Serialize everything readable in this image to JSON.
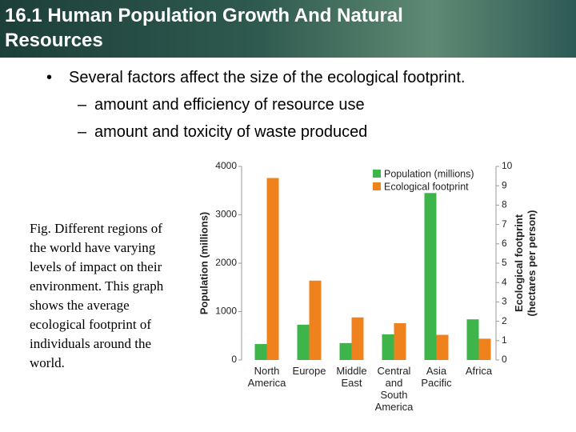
{
  "slide": {
    "title": "16.1 Human Population Growth And Natural Resources",
    "bullet": "Several factors affect the size of the ecological footprint.",
    "subbullets": [
      "amount and efficiency of resource use",
      "amount and toxicity of waste produced"
    ],
    "caption": "Fig. Different regions of the world have varying levels of impact on their environment. This graph shows the average ecological footprint of individuals around the world."
  },
  "chart_data": {
    "type": "bar",
    "categories": [
      "North America",
      "Europe",
      "Middle East",
      "Central and South America",
      "Asia Pacific",
      "Africa"
    ],
    "series": [
      {
        "name": "Population (millions)",
        "color": "#3db54a",
        "values": [
          330,
          730,
          350,
          530,
          3450,
          840
        ]
      },
      {
        "name": "Ecological footprint",
        "color": "#f0821e",
        "axis": "y2",
        "values": [
          9.4,
          4.1,
          2.2,
          1.9,
          1.3,
          1.1
        ]
      }
    ],
    "ylabel": "Population (millions)",
    "y2label": "Ecological footprint (hectares per person)",
    "ylim": [
      0,
      4000
    ],
    "yticks": [
      0,
      1000,
      2000,
      3000,
      4000
    ],
    "y2lim": [
      0,
      10
    ],
    "y2ticks": [
      0,
      1,
      2,
      3,
      4,
      5,
      6,
      7,
      8,
      9,
      10
    ],
    "legend": "upper right"
  }
}
